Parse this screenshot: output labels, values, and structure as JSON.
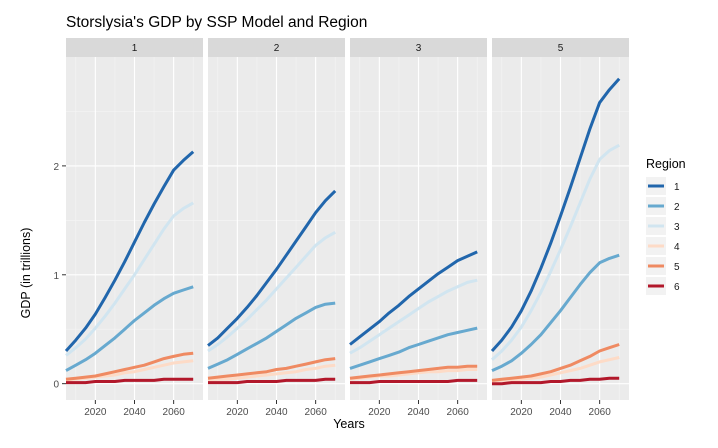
{
  "chart_data": {
    "type": "line",
    "title": "Storslysia's GDP by SSP Model and Region",
    "xlabel": "Years",
    "ylabel": "GDP (in trillions)",
    "xlim": [
      2005,
      2075
    ],
    "ylim": [
      -0.15,
      3.0
    ],
    "x_ticks": [
      2020,
      2040,
      2060
    ],
    "y_ticks": [
      0,
      1,
      2
    ],
    "grid": true,
    "legend": {
      "title": "Region",
      "position": "right",
      "entries": [
        {
          "label": "1",
          "color": "#2166ac"
        },
        {
          "label": "2",
          "color": "#67a9cf"
        },
        {
          "label": "3",
          "color": "#d1e5f0"
        },
        {
          "label": "4",
          "color": "#fddbc7"
        },
        {
          "label": "5",
          "color": "#ef8a62"
        },
        {
          "label": "6",
          "color": "#b2182b"
        }
      ]
    },
    "x": [
      2005,
      2010,
      2015,
      2020,
      2025,
      2030,
      2035,
      2040,
      2045,
      2050,
      2055,
      2060,
      2065,
      2070
    ],
    "panels": [
      {
        "label": "1",
        "series": [
          {
            "name": "1",
            "values": [
              0.3,
              0.4,
              0.51,
              0.64,
              0.79,
              0.95,
              1.12,
              1.3,
              1.48,
              1.65,
              1.81,
              1.96,
              2.05,
              2.13
            ]
          },
          {
            "name": "2",
            "values": [
              0.12,
              0.17,
              0.22,
              0.28,
              0.35,
              0.42,
              0.5,
              0.58,
              0.65,
              0.72,
              0.78,
              0.83,
              0.86,
              0.89
            ]
          },
          {
            "name": "3",
            "values": [
              0.26,
              0.33,
              0.41,
              0.51,
              0.62,
              0.74,
              0.87,
              1.0,
              1.14,
              1.28,
              1.42,
              1.54,
              1.61,
              1.66
            ]
          },
          {
            "name": "4",
            "values": [
              0.03,
              0.04,
              0.05,
              0.06,
              0.07,
              0.08,
              0.1,
              0.11,
              0.13,
              0.15,
              0.17,
              0.19,
              0.2,
              0.21
            ]
          },
          {
            "name": "5",
            "values": [
              0.04,
              0.05,
              0.06,
              0.07,
              0.09,
              0.11,
              0.13,
              0.15,
              0.17,
              0.2,
              0.23,
              0.25,
              0.27,
              0.28
            ]
          },
          {
            "name": "6",
            "values": [
              0.01,
              0.01,
              0.01,
              0.02,
              0.02,
              0.02,
              0.03,
              0.03,
              0.03,
              0.03,
              0.04,
              0.04,
              0.04,
              0.04
            ]
          }
        ]
      },
      {
        "label": "2",
        "series": [
          {
            "name": "1",
            "values": [
              0.35,
              0.42,
              0.51,
              0.6,
              0.7,
              0.81,
              0.93,
              1.05,
              1.18,
              1.31,
              1.44,
              1.57,
              1.68,
              1.77
            ]
          },
          {
            "name": "2",
            "values": [
              0.14,
              0.18,
              0.22,
              0.27,
              0.32,
              0.37,
              0.42,
              0.48,
              0.54,
              0.6,
              0.65,
              0.7,
              0.73,
              0.74
            ]
          },
          {
            "name": "3",
            "values": [
              0.3,
              0.36,
              0.43,
              0.51,
              0.59,
              0.68,
              0.77,
              0.87,
              0.97,
              1.07,
              1.17,
              1.27,
              1.34,
              1.39
            ]
          },
          {
            "name": "4",
            "values": [
              0.03,
              0.04,
              0.04,
              0.05,
              0.06,
              0.07,
              0.08,
              0.09,
              0.1,
              0.11,
              0.13,
              0.14,
              0.16,
              0.17
            ]
          },
          {
            "name": "5",
            "values": [
              0.05,
              0.06,
              0.07,
              0.08,
              0.09,
              0.1,
              0.11,
              0.13,
              0.14,
              0.16,
              0.18,
              0.2,
              0.22,
              0.23
            ]
          },
          {
            "name": "6",
            "values": [
              0.01,
              0.01,
              0.01,
              0.01,
              0.02,
              0.02,
              0.02,
              0.02,
              0.03,
              0.03,
              0.03,
              0.03,
              0.04,
              0.04
            ]
          }
        ]
      },
      {
        "label": "3",
        "series": [
          {
            "name": "1",
            "values": [
              0.36,
              0.43,
              0.5,
              0.57,
              0.65,
              0.72,
              0.8,
              0.87,
              0.94,
              1.01,
              1.07,
              1.13,
              1.17,
              1.21
            ]
          },
          {
            "name": "2",
            "values": [
              0.14,
              0.17,
              0.2,
              0.23,
              0.26,
              0.29,
              0.33,
              0.36,
              0.39,
              0.42,
              0.45,
              0.47,
              0.49,
              0.51
            ]
          },
          {
            "name": "3",
            "values": [
              0.28,
              0.33,
              0.39,
              0.45,
              0.51,
              0.57,
              0.63,
              0.69,
              0.75,
              0.8,
              0.85,
              0.89,
              0.93,
              0.95
            ]
          },
          {
            "name": "4",
            "values": [
              0.04,
              0.05,
              0.06,
              0.07,
              0.07,
              0.08,
              0.09,
              0.1,
              0.11,
              0.11,
              0.12,
              0.12,
              0.13,
              0.13
            ]
          },
          {
            "name": "5",
            "values": [
              0.05,
              0.06,
              0.07,
              0.08,
              0.09,
              0.1,
              0.11,
              0.12,
              0.13,
              0.14,
              0.15,
              0.15,
              0.16,
              0.16
            ]
          },
          {
            "name": "6",
            "values": [
              0.01,
              0.01,
              0.01,
              0.02,
              0.02,
              0.02,
              0.02,
              0.02,
              0.02,
              0.02,
              0.02,
              0.03,
              0.03,
              0.03
            ]
          }
        ]
      },
      {
        "label": "5",
        "series": [
          {
            "name": "1",
            "values": [
              0.3,
              0.4,
              0.52,
              0.67,
              0.85,
              1.06,
              1.29,
              1.54,
              1.8,
              2.07,
              2.34,
              2.58,
              2.7,
              2.8
            ]
          },
          {
            "name": "2",
            "values": [
              0.12,
              0.16,
              0.21,
              0.28,
              0.36,
              0.45,
              0.56,
              0.67,
              0.79,
              0.91,
              1.02,
              1.11,
              1.15,
              1.18
            ]
          },
          {
            "name": "3",
            "values": [
              0.22,
              0.3,
              0.4,
              0.52,
              0.67,
              0.84,
              1.03,
              1.23,
              1.44,
              1.66,
              1.88,
              2.06,
              2.14,
              2.19
            ]
          },
          {
            "name": "4",
            "values": [
              0.02,
              0.03,
              0.03,
              0.04,
              0.05,
              0.06,
              0.08,
              0.1,
              0.12,
              0.14,
              0.17,
              0.2,
              0.22,
              0.24
            ]
          },
          {
            "name": "5",
            "values": [
              0.03,
              0.04,
              0.05,
              0.06,
              0.07,
              0.09,
              0.11,
              0.14,
              0.17,
              0.21,
              0.25,
              0.3,
              0.33,
              0.36
            ]
          },
          {
            "name": "6",
            "values": [
              0.0,
              0.0,
              0.01,
              0.01,
              0.01,
              0.01,
              0.02,
              0.02,
              0.03,
              0.03,
              0.04,
              0.04,
              0.05,
              0.05
            ]
          }
        ]
      }
    ]
  }
}
